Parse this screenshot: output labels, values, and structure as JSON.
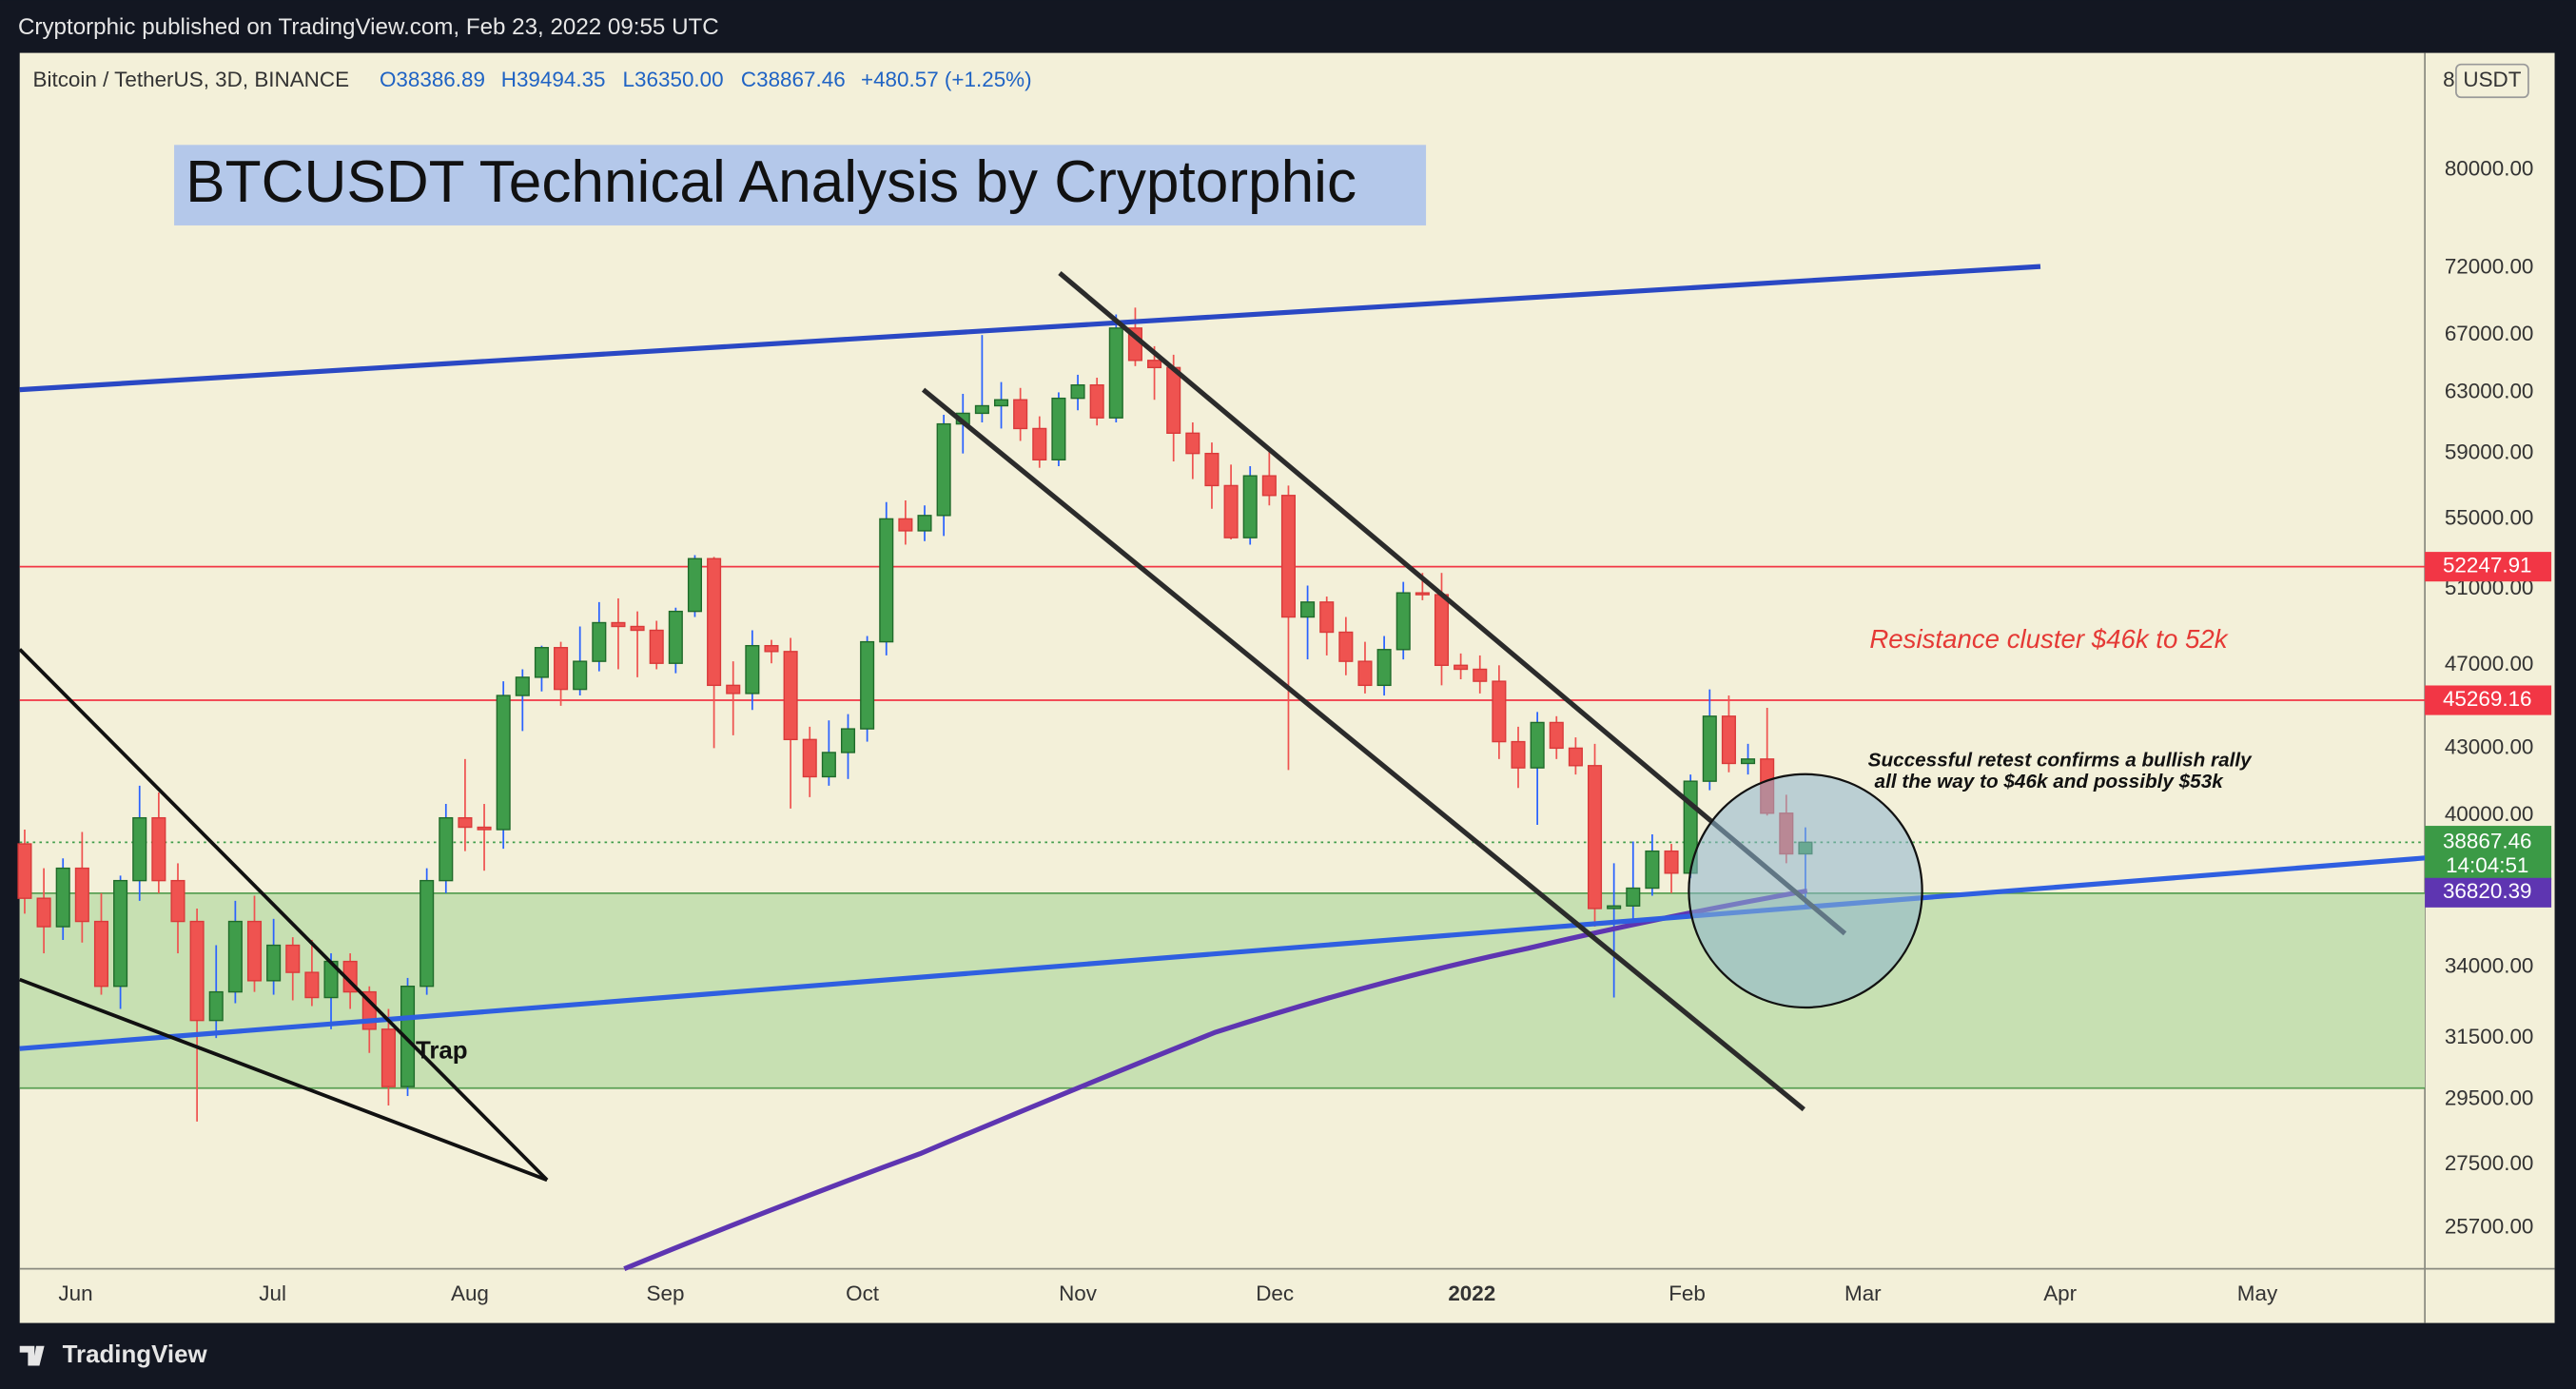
{
  "header": {
    "text": "Cryptorphic published on TradingView.com, Feb 23, 2022 09:55 UTC"
  },
  "footer": {
    "brand": "TradingView"
  },
  "chart_data": {
    "type": "candlestick",
    "title": "BTCUSDT Technical Analysis by Cryptorphic",
    "legend": {
      "symbol": "Bitcoin / TetherUS, 3D, BINANCE",
      "open": "O38386.89",
      "high": "H39494.35",
      "low": "L36350.00",
      "close": "C38867.46",
      "change": "+480.57 (+1.25%)"
    },
    "currency": "USDT",
    "partial_tick": "8",
    "ylog": true,
    "grid": false,
    "ylim": [
      24590,
      90700
    ],
    "yticks": [
      {
        "value": 80000,
        "label": "80000.00"
      },
      {
        "value": 72000,
        "label": "72000.00"
      },
      {
        "value": 67000,
        "label": "67000.00"
      },
      {
        "value": 63000,
        "label": "63000.00"
      },
      {
        "value": 59000,
        "label": "59000.00"
      },
      {
        "value": 55000,
        "label": "55000.00"
      },
      {
        "value": 51000,
        "label": "51000.00"
      },
      {
        "value": 47000,
        "label": "47000.00"
      },
      {
        "value": 43000,
        "label": "43000.00"
      },
      {
        "value": 40000,
        "label": "40000.00"
      },
      {
        "value": 34000,
        "label": "34000.00"
      },
      {
        "value": 31500,
        "label": "31500.00"
      },
      {
        "value": 29500,
        "label": "29500.00"
      },
      {
        "value": 27500,
        "label": "27500.00"
      },
      {
        "value": 25700,
        "label": "25700.00"
      }
    ],
    "xlim": [
      -0.26,
      125.35
    ],
    "xticks": [
      {
        "value": 2.66,
        "label": "Jun"
      },
      {
        "value": 12.95,
        "label": "Jul"
      },
      {
        "value": 23.25,
        "label": "Aug"
      },
      {
        "value": 33.46,
        "label": "Sep"
      },
      {
        "value": 43.75,
        "label": "Oct"
      },
      {
        "value": 55.0,
        "label": "Nov"
      },
      {
        "value": 65.29,
        "label": "Dec"
      },
      {
        "value": 75.58,
        "label": "2022",
        "bold": true
      },
      {
        "value": 86.82,
        "label": "Feb"
      },
      {
        "value": 96.0,
        "label": "Mar"
      },
      {
        "value": 106.3,
        "label": "Apr"
      },
      {
        "value": 116.6,
        "label": "May"
      }
    ],
    "up_color": "#3f9c4a",
    "up_border_color": "#1f6a2a",
    "up_wick_color": "#2962ff",
    "down_color": "#ef5350",
    "down_border_color": "#d93a3a",
    "down_wick_color": "#ef5350",
    "candles": {
      "open": [
        38800,
        36600,
        35500,
        37800,
        35700,
        33300,
        37300,
        39900,
        37300,
        35700,
        32100,
        33100,
        35700,
        33500,
        34800,
        33800,
        32900,
        34200,
        33100,
        31800,
        29900,
        33300,
        37300,
        39900,
        39500,
        39400,
        45500,
        46400,
        47900,
        45800,
        47200,
        49200,
        49000,
        48800,
        47100,
        49800,
        52700,
        46000,
        45600,
        48000,
        47700,
        43400,
        41700,
        42800,
        43900,
        48200,
        55000,
        54300,
        55200,
        60900,
        61600,
        62100,
        62500,
        60600,
        58600,
        62600,
        63500,
        61300,
        67500,
        65200,
        64700,
        60300,
        59000,
        57000,
        53900,
        57600,
        56400,
        49500,
        50300,
        48700,
        47200,
        46000,
        47800,
        50800,
        50700,
        47000,
        46800,
        46200,
        43300,
        42100,
        44200,
        43000,
        42200,
        36200,
        36300,
        37000,
        38500,
        37600,
        41500,
        44500,
        42300,
        42500,
        40100,
        38386.89
      ],
      "high": [
        39400,
        37800,
        38200,
        39300,
        36800,
        37500,
        41300,
        41000,
        38000,
        36200,
        34800,
        36500,
        36700,
        35800,
        35100,
        35000,
        34500,
        34500,
        33300,
        32500,
        33600,
        37800,
        40500,
        42500,
        40500,
        46200,
        46800,
        48000,
        48200,
        49000,
        50300,
        50500,
        49800,
        49300,
        50000,
        52900,
        52800,
        47200,
        48800,
        48300,
        48400,
        44000,
        44300,
        44600,
        48500,
        56000,
        56100,
        55800,
        61500,
        62900,
        67000,
        63700,
        63300,
        61400,
        63000,
        64200,
        64000,
        68500,
        69000,
        66200,
        65600,
        61000,
        59700,
        58300,
        58200,
        59200,
        57000,
        51200,
        50600,
        49500,
        48200,
        48500,
        51400,
        51900,
        51900,
        47600,
        47500,
        47000,
        44000,
        44700,
        44500,
        43500,
        43200,
        38000,
        38900,
        39200,
        38800,
        41800,
        45800,
        45500,
        43200,
        44900,
        40900,
        39494.35
      ],
      "low": [
        36000,
        34500,
        35000,
        34900,
        33000,
        32500,
        36500,
        36800,
        34500,
        28800,
        31500,
        32700,
        33100,
        33000,
        32800,
        32600,
        31800,
        32500,
        31000,
        29300,
        29600,
        33000,
        36800,
        38500,
        37700,
        38600,
        43800,
        45700,
        45000,
        45500,
        46700,
        46800,
        46400,
        46800,
        46600,
        49500,
        43000,
        43600,
        44800,
        47100,
        40300,
        40800,
        41300,
        41600,
        43300,
        47500,
        53500,
        53700,
        54000,
        59000,
        61000,
        60600,
        59800,
        58100,
        58200,
        61800,
        60800,
        61000,
        64800,
        62500,
        58500,
        57400,
        55600,
        53800,
        53500,
        55800,
        42000,
        47300,
        47500,
        46500,
        45600,
        45500,
        47300,
        50400,
        46000,
        46300,
        45600,
        42500,
        41200,
        39600,
        42500,
        41800,
        35500,
        32900,
        35700,
        36700,
        36800,
        37400,
        41100,
        41900,
        41800,
        40000,
        38000,
        36350
      ],
      "close": [
        36600,
        35500,
        37800,
        35700,
        33300,
        37300,
        39900,
        37300,
        35700,
        32100,
        33100,
        35700,
        33500,
        34800,
        33800,
        32900,
        34200,
        33100,
        31800,
        29900,
        33300,
        37300,
        39900,
        39500,
        39400,
        45500,
        46400,
        47900,
        45800,
        47200,
        49200,
        49000,
        48800,
        47100,
        49800,
        52700,
        46000,
        45600,
        48000,
        47700,
        43400,
        41700,
        42800,
        43900,
        48200,
        55000,
        54300,
        55200,
        60900,
        61600,
        62100,
        62500,
        60600,
        58600,
        62600,
        63500,
        61300,
        67500,
        65200,
        64700,
        60300,
        59000,
        57000,
        53900,
        57600,
        56400,
        49500,
        50300,
        48700,
        47200,
        46000,
        47800,
        50800,
        50700,
        47000,
        46800,
        46200,
        43300,
        42100,
        44200,
        43000,
        42200,
        36200,
        36300,
        37000,
        38500,
        37600,
        41500,
        44500,
        42300,
        42500,
        40100,
        38386.89,
        38867.46
      ]
    },
    "countdown": "14:04:51",
    "ma_value": 36820.39,
    "ma_color": "#5e35b1",
    "levels": [
      52247.91,
      45269.16
    ],
    "level_color": "#f23645",
    "support_zone": [
      29850,
      36800
    ],
    "annotations": {
      "resistance": "Resistance cluster $46k to 52k",
      "retest_line1": "Successful retest confirms a bullish rally",
      "retest_line2": "all the way to $46k and possibly $53k",
      "trap": "Trap"
    }
  }
}
